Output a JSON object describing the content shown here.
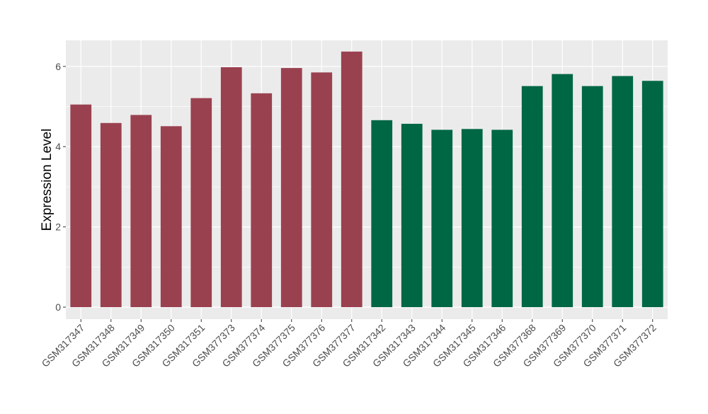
{
  "chart_data": {
    "type": "bar",
    "ylabel": "Expression Level",
    "xlabel": "",
    "ylim": [
      -0.3,
      6.65
    ],
    "y_ticks": [
      0,
      2,
      4,
      6
    ],
    "y_tick_labels": [
      "0",
      "2",
      "4",
      "6"
    ],
    "grid": true,
    "legend": "none",
    "categories": [
      "GSM317347",
      "GSM317348",
      "GSM317349",
      "GSM317350",
      "GSM317351",
      "GSM377373",
      "GSM377374",
      "GSM377375",
      "GSM377376",
      "GSM377377",
      "GSM317342",
      "GSM317343",
      "GSM317344",
      "GSM317345",
      "GSM317346",
      "GSM377368",
      "GSM377369",
      "GSM377370",
      "GSM377371",
      "GSM377372"
    ],
    "values": [
      5.05,
      4.59,
      4.79,
      4.51,
      5.21,
      5.98,
      5.33,
      5.96,
      5.85,
      6.37,
      4.66,
      4.57,
      4.42,
      4.44,
      4.42,
      5.51,
      5.81,
      5.51,
      5.76,
      5.64
    ],
    "colors": [
      "#9a4150",
      "#9a4150",
      "#9a4150",
      "#9a4150",
      "#9a4150",
      "#9a4150",
      "#9a4150",
      "#9a4150",
      "#9a4150",
      "#9a4150",
      "#006744",
      "#006744",
      "#006744",
      "#006744",
      "#006744",
      "#006744",
      "#006744",
      "#006744",
      "#006744",
      "#006744"
    ],
    "panel_background": "#ebebeb",
    "grid_color": "#ffffff"
  }
}
